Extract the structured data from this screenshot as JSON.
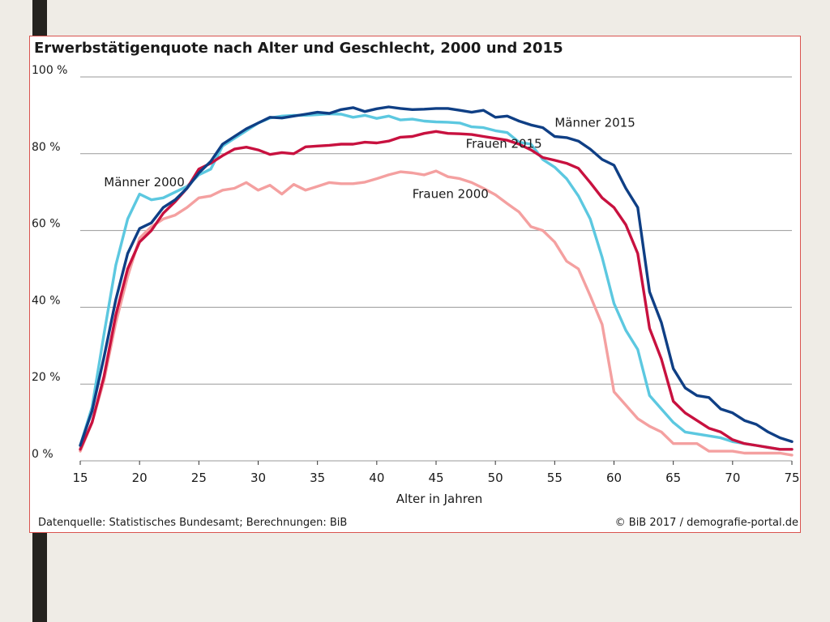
{
  "slide": {
    "accent_bar_color": "#25231f",
    "background": "#efece6",
    "frame_color": "#d9534f"
  },
  "chart_data": {
    "type": "line",
    "title": "Erwerbstätigenquote nach Alter und Geschlecht, 2000 und 2015",
    "xlabel": "Alter in Jahren",
    "ylabel": "",
    "xlim": [
      15,
      75
    ],
    "ylim": [
      0,
      100
    ],
    "xticks": [
      15,
      20,
      25,
      30,
      35,
      40,
      45,
      50,
      55,
      60,
      65,
      70,
      75
    ],
    "yticks": [
      {
        "value": 0,
        "label": "0 %"
      },
      {
        "value": 20,
        "label": "20 %"
      },
      {
        "value": 40,
        "label": "40 %"
      },
      {
        "value": 60,
        "label": "60 %"
      },
      {
        "value": 80,
        "label": "80 %"
      },
      {
        "value": 100,
        "label": "100 %"
      }
    ],
    "grid": "horizontal",
    "legend": "direct labels on lines",
    "x": [
      15,
      16,
      17,
      18,
      19,
      20,
      21,
      22,
      23,
      24,
      25,
      26,
      27,
      28,
      29,
      30,
      31,
      32,
      33,
      34,
      35,
      36,
      37,
      38,
      39,
      40,
      41,
      42,
      43,
      44,
      45,
      46,
      47,
      48,
      49,
      50,
      51,
      52,
      53,
      54,
      55,
      56,
      57,
      58,
      59,
      60,
      61,
      62,
      63,
      64,
      65,
      66,
      67,
      68,
      69,
      70,
      71,
      72,
      73,
      74,
      75
    ],
    "series": [
      {
        "name": "Männer 2015",
        "color": "#0f3f85",
        "label_anchor": {
          "x": 55,
          "y": 87
        },
        "values": [
          4,
          13,
          27,
          42,
          54,
          60.5,
          62,
          66,
          68,
          71,
          75,
          78,
          82.5,
          84.5,
          86.5,
          88,
          89.5,
          89.3,
          89.8,
          90.3,
          90.8,
          90.5,
          91.5,
          92,
          91,
          91.7,
          92.2,
          91.8,
          91.5,
          91.6,
          91.8,
          91.8,
          91.3,
          90.8,
          91.3,
          89.5,
          89.8,
          88.5,
          87.5,
          86.8,
          84.5,
          84.2,
          83.3,
          81.2,
          78.5,
          77,
          71,
          66,
          44,
          36,
          24,
          19,
          17,
          16.5,
          13.5,
          12.5,
          10.5,
          9.5,
          7.5,
          6,
          5
        ]
      },
      {
        "name": "Männer 2000",
        "color": "#5cc8e0",
        "label_anchor": {
          "x": 17,
          "y": 71.5
        },
        "values": [
          4,
          14,
          33,
          51,
          63,
          69.5,
          68,
          68.5,
          70,
          71.5,
          74.5,
          76,
          82,
          84,
          86,
          88,
          89.3,
          89.8,
          90,
          90,
          90.2,
          90.4,
          90.3,
          89.5,
          90,
          89.2,
          89.8,
          88.8,
          89,
          88.5,
          88.3,
          88.2,
          88,
          87,
          86.8,
          86,
          85.5,
          83,
          82.5,
          78.5,
          76.5,
          73.5,
          69,
          63,
          53,
          41,
          34,
          29,
          17,
          13.5,
          10,
          7.5,
          7,
          6.5,
          6,
          5,
          4.5,
          4,
          3.5,
          3,
          3
        ]
      },
      {
        "name": "Frauen 2015",
        "color": "#c8113f",
        "label_anchor": {
          "x": 47.5,
          "y": 81.5
        },
        "values": [
          3,
          10,
          22,
          38,
          50,
          57,
          60,
          64.5,
          67.5,
          71,
          76,
          77.5,
          79.5,
          81.2,
          81.7,
          81,
          79.8,
          80.3,
          80,
          81.8,
          82,
          82.2,
          82.5,
          82.5,
          83,
          82.8,
          83.3,
          84.3,
          84.5,
          85.3,
          85.8,
          85.3,
          85.2,
          85,
          84.5,
          84,
          83.5,
          82.5,
          81,
          79,
          78.3,
          77.5,
          76.2,
          72.5,
          68.5,
          66,
          61.5,
          54,
          34.5,
          26.5,
          15.5,
          12.5,
          10.5,
          8.5,
          7.5,
          5.5,
          4.5,
          4,
          3.5,
          3,
          3
        ]
      },
      {
        "name": "Frauen 2000",
        "color": "#f4a0a0",
        "label_anchor": {
          "x": 43,
          "y": 68.5
        },
        "values": [
          2.5,
          10,
          21,
          36,
          48,
          58,
          61,
          63,
          64,
          66,
          68.5,
          69,
          70.5,
          71,
          72.5,
          70.5,
          71.8,
          69.5,
          72,
          70.5,
          71.5,
          72.5,
          72.2,
          72.2,
          72.6,
          73.5,
          74.5,
          75.3,
          75,
          74.5,
          75.5,
          74,
          73.5,
          72.5,
          71,
          69.3,
          67,
          64.8,
          61,
          60,
          57,
          52,
          50,
          43,
          35.5,
          18,
          14.5,
          11,
          9,
          7.5,
          4.5,
          4.5,
          4.5,
          2.5,
          2.5,
          2.5,
          2,
          2,
          2,
          2,
          1.5
        ]
      }
    ]
  },
  "footer": {
    "source": "Datenquelle: Statistisches Bundesamt; Berechnungen: BiB",
    "credit": "© BiB 2017 / demografie-portal.de"
  }
}
